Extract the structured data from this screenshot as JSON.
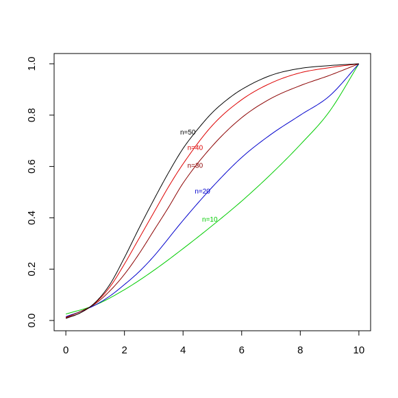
{
  "chart_data": {
    "type": "line",
    "title": "",
    "xlabel": "",
    "ylabel": "",
    "xlim": [
      -0.4,
      10.4
    ],
    "ylim": [
      -0.04,
      1.04
    ],
    "x_ticks": [
      "0",
      "2",
      "4",
      "6",
      "8",
      "10"
    ],
    "y_ticks": [
      "0.0",
      "0.2",
      "0.4",
      "0.6",
      "0.8",
      "1.0"
    ],
    "grid": false,
    "legend": "none",
    "series": [
      {
        "name": "n=10",
        "color": "#00cc00",
        "label_at": [
          4.65,
          0.385
        ],
        "x": [
          0,
          1,
          2,
          3,
          4,
          5,
          6,
          7,
          8,
          9,
          10
        ],
        "y": [
          0.025,
          0.06,
          0.12,
          0.195,
          0.28,
          0.37,
          0.465,
          0.57,
          0.685,
          0.815,
          1.0
        ]
      },
      {
        "name": "n=20",
        "color": "#0000cc",
        "label_at": [
          4.4,
          0.495
        ],
        "x": [
          0,
          0.5,
          1,
          1.5,
          2,
          2.5,
          3,
          4,
          5,
          6,
          7,
          8,
          9,
          10
        ],
        "y": [
          0.015,
          0.035,
          0.06,
          0.095,
          0.14,
          0.19,
          0.25,
          0.39,
          0.52,
          0.635,
          0.725,
          0.8,
          0.875,
          1.0
        ]
      },
      {
        "name": "n=30",
        "color": "#8b0000",
        "label_at": [
          4.15,
          0.595
        ],
        "x": [
          0,
          0.5,
          1,
          1.5,
          2,
          2.5,
          3,
          3.5,
          4,
          5,
          6,
          7,
          8,
          9,
          10
        ],
        "y": [
          0.012,
          0.035,
          0.065,
          0.115,
          0.18,
          0.26,
          0.35,
          0.44,
          0.535,
          0.68,
          0.79,
          0.865,
          0.915,
          0.955,
          1.0
        ]
      },
      {
        "name": "n=40",
        "color": "#dd0000",
        "label_at": [
          4.15,
          0.665
        ],
        "x": [
          0,
          0.5,
          1,
          1.5,
          2,
          2.5,
          3,
          3.5,
          4,
          5,
          6,
          7,
          8,
          9,
          10
        ],
        "y": [
          0.01,
          0.03,
          0.068,
          0.13,
          0.22,
          0.32,
          0.42,
          0.52,
          0.61,
          0.76,
          0.86,
          0.925,
          0.965,
          0.985,
          1.0
        ]
      },
      {
        "name": "n=50",
        "color": "#000000",
        "label_at": [
          3.9,
          0.725
        ],
        "x": [
          0,
          0.5,
          1,
          1.5,
          2,
          2.5,
          3,
          3.5,
          4,
          4.5,
          5,
          5.5,
          6,
          7,
          8,
          9,
          10
        ],
        "y": [
          0.008,
          0.03,
          0.07,
          0.14,
          0.245,
          0.36,
          0.47,
          0.575,
          0.67,
          0.745,
          0.81,
          0.86,
          0.9,
          0.955,
          0.982,
          0.993,
          1.0
        ]
      }
    ]
  }
}
